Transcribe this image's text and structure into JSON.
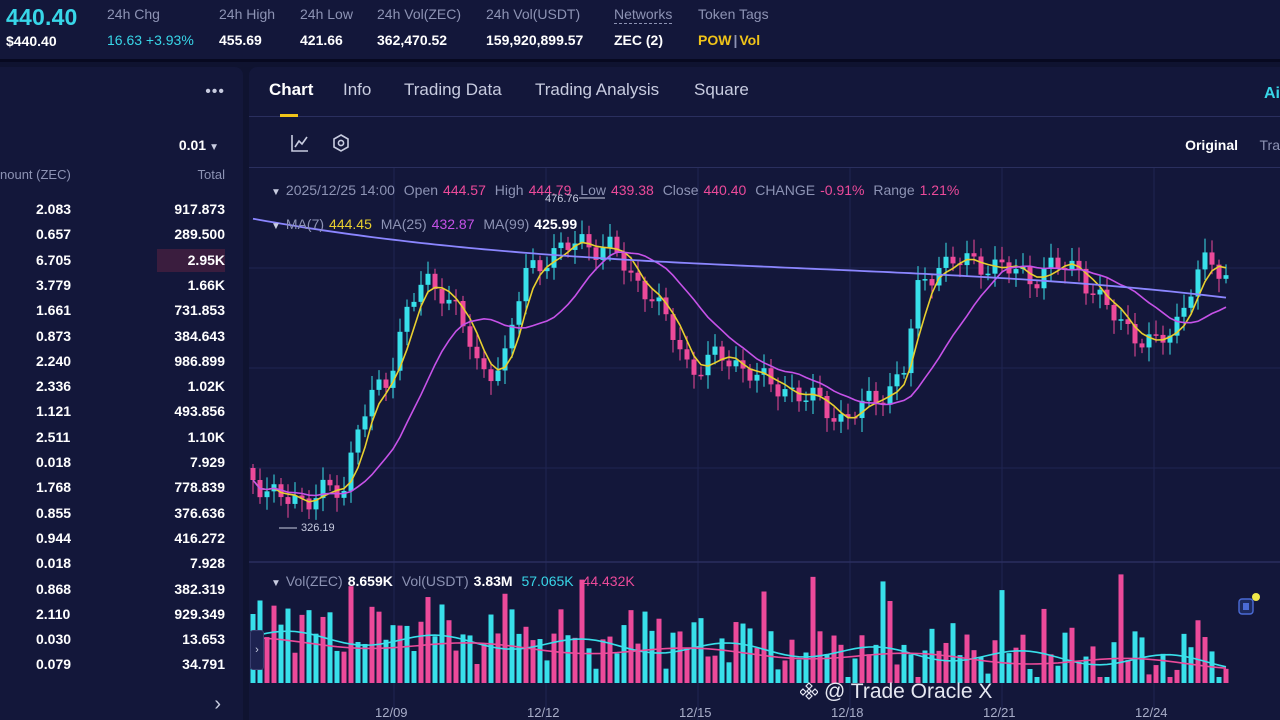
{
  "ticker": {
    "last_price": "440.40",
    "last_price_usd": "$440.40",
    "stats": [
      {
        "label": "24h Chg",
        "value": "16.63 +3.93%"
      },
      {
        "label": "24h High",
        "value": "455.69"
      },
      {
        "label": "24h Low",
        "value": "421.66"
      },
      {
        "label": "24h Vol(ZEC)",
        "value": "362,470.52"
      },
      {
        "label": "24h Vol(USDT)",
        "value": "159,920,899.57"
      },
      {
        "label": "Networks",
        "value": "ZEC (2)"
      }
    ],
    "token_tags": {
      "label": "Token Tags",
      "pow": "POW",
      "sep": "|",
      "vol": "Vol"
    }
  },
  "orderbook": {
    "more_label": "•••",
    "precision": "0.01",
    "col_amount": "nount (ZEC)",
    "col_total": "Total",
    "rows": [
      {
        "amount": "2.083",
        "total": "917.873",
        "depth": 0.0
      },
      {
        "amount": "0.657",
        "total": "289.500",
        "depth": 0.0
      },
      {
        "amount": "6.705",
        "total": "2.95K",
        "depth": 0.34
      },
      {
        "amount": "3.779",
        "total": "1.66K",
        "depth": 0.0
      },
      {
        "amount": "1.661",
        "total": "731.853",
        "depth": 0.0
      },
      {
        "amount": "0.873",
        "total": "384.643",
        "depth": 0.0
      },
      {
        "amount": "2.240",
        "total": "986.899",
        "depth": 0.0
      },
      {
        "amount": "2.336",
        "total": "1.02K",
        "depth": 0.0
      },
      {
        "amount": "1.121",
        "total": "493.856",
        "depth": 0.0
      },
      {
        "amount": "2.511",
        "total": "1.10K",
        "depth": 0.0
      },
      {
        "amount": "0.018",
        "total": "7.929",
        "depth": 0.0
      },
      {
        "amount": "1.768",
        "total": "778.839",
        "depth": 0.0
      },
      {
        "amount": "0.855",
        "total": "376.636",
        "depth": 0.0
      },
      {
        "amount": "0.944",
        "total": "416.272",
        "depth": 0.0
      },
      {
        "amount": "0.018",
        "total": "7.928",
        "depth": 0.0
      },
      {
        "amount": "0.868",
        "total": "382.319",
        "depth": 0.0
      },
      {
        "amount": "2.110",
        "total": "929.349",
        "depth": 0.0
      },
      {
        "amount": "0.030",
        "total": "13.653",
        "depth": 0.0
      },
      {
        "amount": "0.079",
        "total": "34.791",
        "depth": 0.0
      }
    ],
    "next_arrow": "›"
  },
  "tabs": {
    "items": [
      "Chart",
      "Info",
      "Trading Data",
      "Trading Analysis",
      "Square"
    ],
    "active": "Chart",
    "ai_badge": "Ai"
  },
  "toolbar": {
    "icons": [
      "indicator-icon",
      "settings-hex-icon"
    ],
    "view_original": "Original",
    "view_trading": "Tra"
  },
  "ohlc": {
    "date": "2025/12/25 14:00",
    "open_label": "Open",
    "open": "444.57",
    "high_label": "High",
    "high": "444.79",
    "low_label": "Low",
    "low": "439.38",
    "close_label": "Close",
    "close": "440.40",
    "change_label": "CHANGE",
    "change": "-0.91%",
    "range_label": "Range",
    "range": "1.21%"
  },
  "ma": {
    "ma7_label": "MA(7)",
    "ma7": "444.45",
    "ma25_label": "MA(25)",
    "ma25": "432.87",
    "ma99_label": "MA(99)",
    "ma99": "425.99"
  },
  "volume": {
    "vol_zec_label": "Vol(ZEC)",
    "vol_zec": "8.659K",
    "vol_usdt_label": "Vol(USDT)",
    "vol_usdt": "3.83M",
    "ma1": "57.065K",
    "ma2": "44.432K"
  },
  "chart_data": {
    "type": "candlestick",
    "high_marker": "476.76",
    "low_marker": "326.19",
    "x_ticks": [
      "12/09",
      "12/12",
      "12/15",
      "12/18",
      "12/21",
      "12/24"
    ],
    "colors": {
      "up": "#38e0ea",
      "down": "#ec4a9a",
      "ma7": "#e8cf2f",
      "ma25": "#c652e8",
      "ma99": "#8b86ff"
    }
  },
  "watermark": "@ Trade Oracle X"
}
